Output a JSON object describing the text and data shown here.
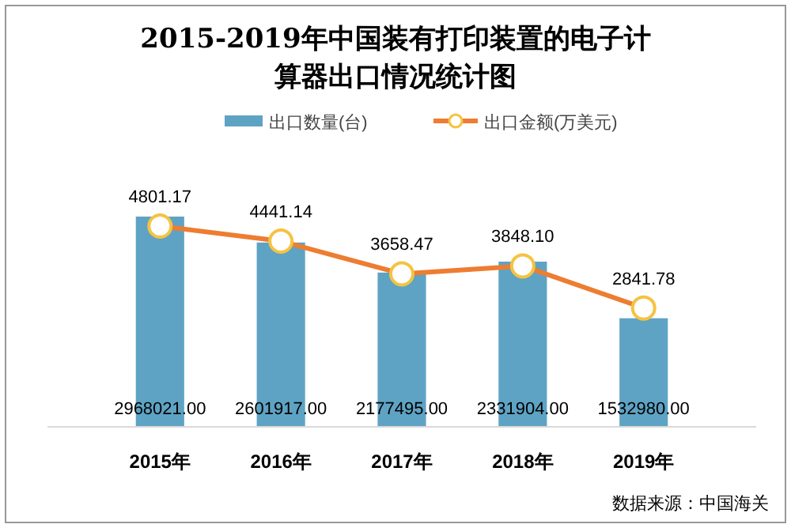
{
  "chart_data": {
    "type": "bar",
    "title": "2015-2019年中国装有打印装置的电子计算器出口情况统计图",
    "categories": [
      "2015年",
      "2016年",
      "2017年",
      "2018年",
      "2019年"
    ],
    "series": [
      {
        "name": "出口数量(台)",
        "color": "#5ea3c4",
        "values": [
          2968021,
          2601917,
          2177495,
          2331904,
          1532980
        ],
        "value_labels": [
          "2968021.00",
          "2601917.00",
          "2177495.00",
          "2331904.00",
          "1532980.00"
        ]
      },
      {
        "name": "出口金额(万美元)",
        "type": "line",
        "axis": "y2",
        "color": "#ed7d31",
        "values": [
          4801.17,
          4441.14,
          3658.47,
          3848.1,
          2841.78
        ],
        "value_labels": [
          "4801.17",
          "4441.14",
          "3658.47",
          "3848.10",
          "2841.78"
        ]
      }
    ],
    "legend": "top",
    "marker": "circle",
    "annotations": [
      "数据来源：中国海关"
    ]
  }
}
